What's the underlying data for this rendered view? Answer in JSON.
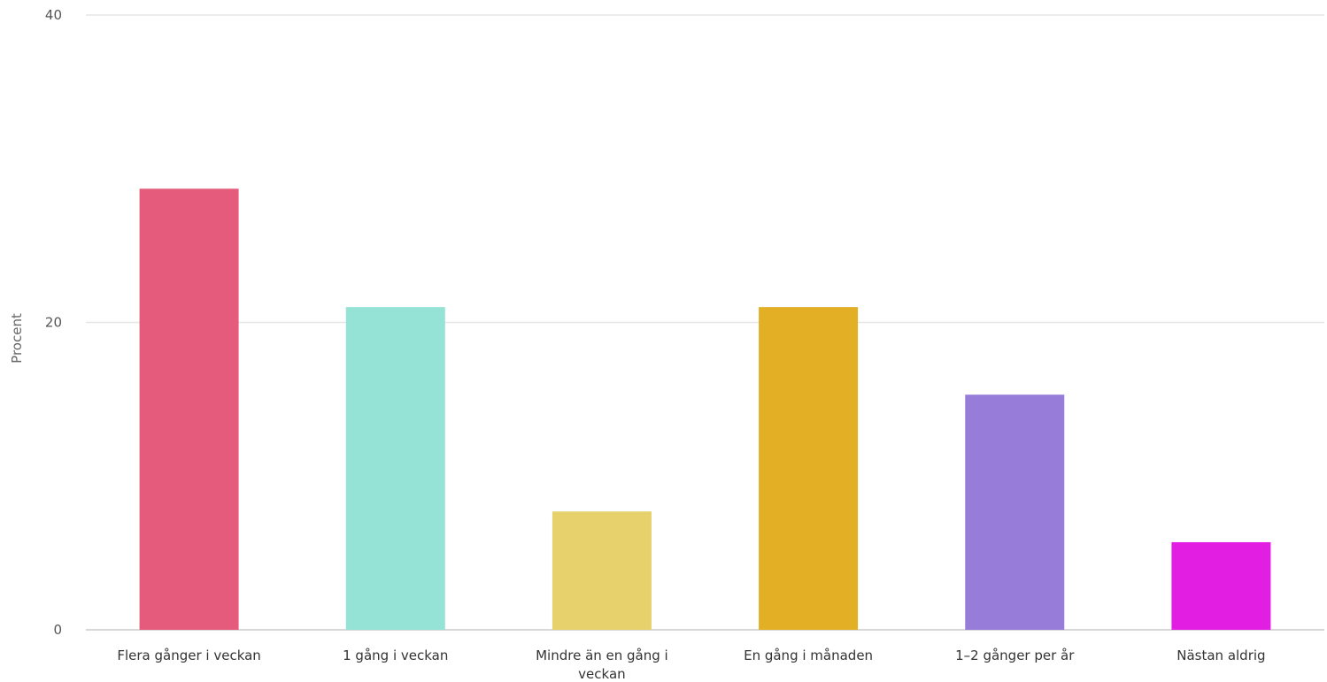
{
  "chart_data": {
    "type": "bar",
    "ylabel": "Procent",
    "xlabel": "",
    "ylim": [
      0,
      40
    ],
    "yticks": [
      0,
      20,
      40
    ],
    "grid": true,
    "legend": "none",
    "categories": [
      [
        "Flera gånger i veckan"
      ],
      [
        "1 gång i veckan"
      ],
      [
        "Mindre än en gång i",
        "veckan"
      ],
      [
        "En gång i månaden"
      ],
      [
        "1–2 gånger per år"
      ],
      [
        "Nästan aldrig"
      ]
    ],
    "values": [
      28.7,
      21.0,
      7.7,
      21.0,
      15.3,
      5.7
    ],
    "colors": [
      "#e55b7b",
      "#94e3d6",
      "#e6d16c",
      "#e3af24",
      "#987cda",
      "#e31ee3"
    ]
  }
}
